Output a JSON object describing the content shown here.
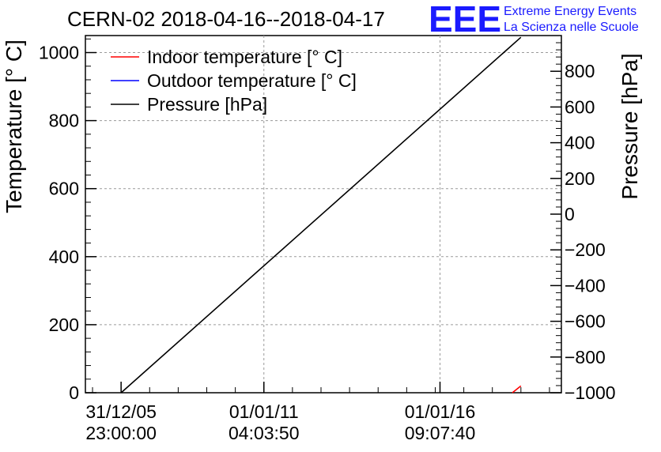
{
  "logo": {
    "text": "EEE",
    "line1": "Extreme Energy Events",
    "line2": "La Scienza nelle Scuole"
  },
  "chart_data": {
    "type": "line",
    "title": "CERN-02 2018-04-16--2018-04-17",
    "ylabel": "Temperature [° C]",
    "y2label": "Pressure [hPa]",
    "x_ticks": [
      {
        "label_date": "31/12/05",
        "label_time": "23:00:00"
      },
      {
        "label_date": "01/01/11",
        "label_time": "04:03:50"
      },
      {
        "label_date": "01/01/16",
        "label_time": "09:07:40"
      }
    ],
    "ylim": [
      0,
      1050
    ],
    "y_ticks": [
      0,
      200,
      400,
      600,
      800,
      1000
    ],
    "y2lim": [
      -1000,
      1000
    ],
    "y2_ticks": [
      "−1000",
      "−800",
      "−600",
      "−400",
      "−200",
      "0",
      "200",
      "400",
      "600",
      "800"
    ],
    "y2_tick_values": [
      -1000,
      -800,
      -600,
      -400,
      -200,
      0,
      200,
      400,
      600,
      800
    ],
    "grid": true,
    "legend_position": "top-left",
    "series": [
      {
        "name": "Indoor temperature [° C]",
        "color": "#ff0000",
        "axis": "left",
        "points": [
          [
            0.897,
            0
          ],
          [
            0.915,
            20
          ]
        ]
      },
      {
        "name": "Outdoor temperature [° C]",
        "color": "#0000ff",
        "axis": "left",
        "points": []
      },
      {
        "name": "Pressure [hPa]",
        "color": "#000000",
        "axis": "left",
        "points": [
          [
            0.075,
            0
          ],
          [
            0.915,
            1045
          ]
        ]
      }
    ]
  }
}
